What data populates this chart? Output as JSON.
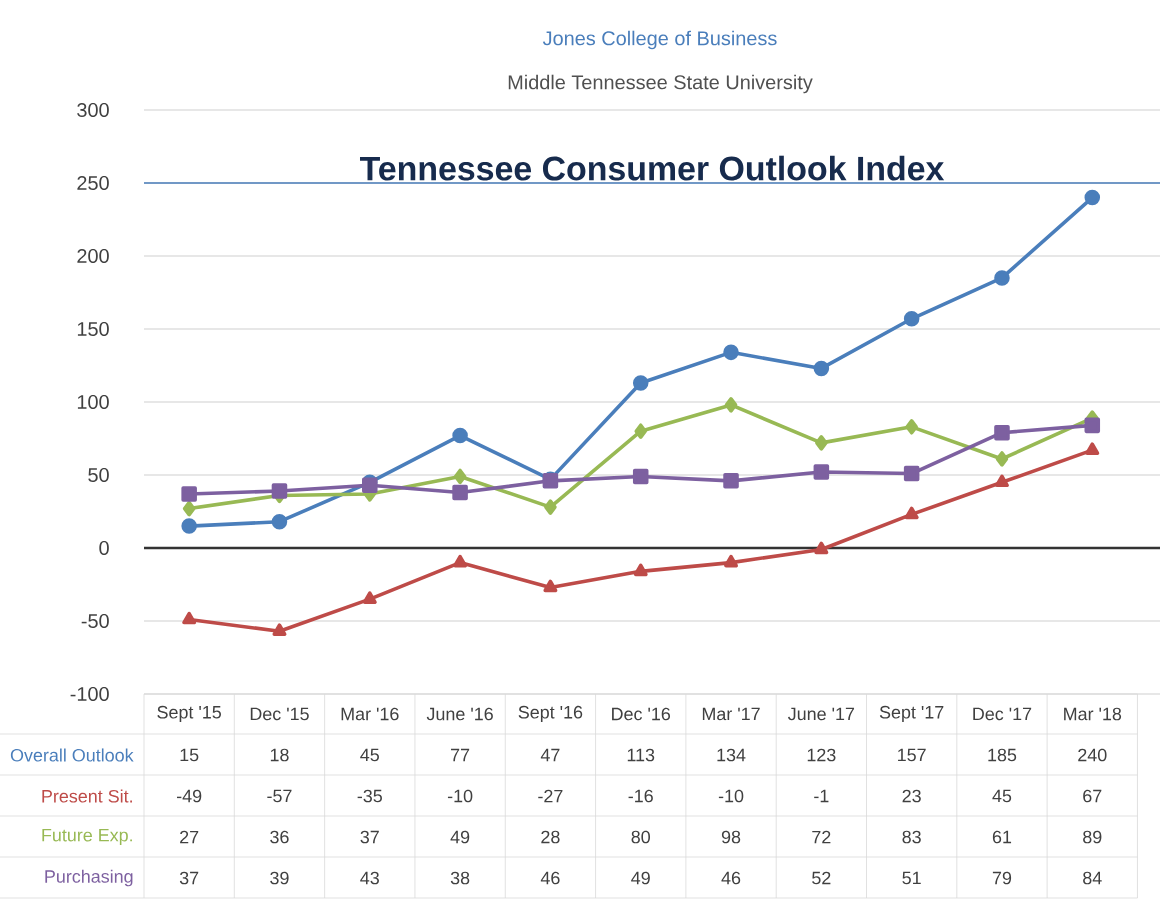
{
  "chart_data": {
    "type": "line",
    "title": "Tennessee Consumer Outlook Index",
    "annotations": [
      "Jones College of Business",
      "Middle Tennessee State University"
    ],
    "categories": [
      "Sept '15",
      "Dec '15",
      "Mar '16",
      "June '16",
      "Sept '16",
      "Dec '16",
      "Mar '17",
      "June '17",
      "Sept '17",
      "Dec '17",
      "Mar '18"
    ],
    "series": [
      {
        "name": "Overall Outlook",
        "color": "#4a7ebb",
        "marker": "circle",
        "values": [
          15,
          18,
          45,
          77,
          47,
          113,
          134,
          123,
          157,
          185,
          240
        ]
      },
      {
        "name": "Present Sit.",
        "color": "#be4b48",
        "marker": "triangle",
        "values": [
          -49,
          -57,
          -35,
          -10,
          -27,
          -16,
          -10,
          -1,
          23,
          45,
          67
        ]
      },
      {
        "name": "Future Exp.",
        "color": "#98b954",
        "marker": "diamond",
        "values": [
          27,
          36,
          37,
          49,
          28,
          80,
          98,
          72,
          83,
          61,
          89
        ]
      },
      {
        "name": "Purchasing",
        "color": "#7d60a0",
        "marker": "square",
        "values": [
          37,
          39,
          43,
          38,
          46,
          49,
          46,
          52,
          51,
          79,
          84
        ]
      }
    ],
    "ylim": [
      -100,
      300
    ],
    "yticks": [
      -100,
      -50,
      0,
      50,
      100,
      150,
      200,
      250,
      300
    ],
    "ref_lines": [
      {
        "axis": "y",
        "value": 250,
        "color": "#4a7ebb"
      }
    ],
    "grid": "y",
    "legend": false,
    "data_labels": true
  }
}
